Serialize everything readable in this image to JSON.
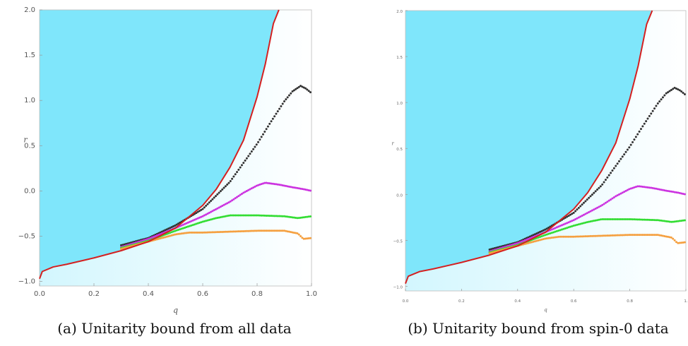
{
  "panels": [
    {
      "caption": "(a) Unitarity bound from all data",
      "chart_data": {
        "type": "scatter",
        "xlabel": "q",
        "ylabel": "r",
        "xlim": [
          0,
          1
        ],
        "ylim": [
          -1.05,
          2.0
        ],
        "xticks": [
          "0.0",
          "0.2",
          "0.4",
          "0.6",
          "0.8",
          "1.0"
        ],
        "yticks": [
          "−1.0",
          "−0.5",
          "0.0",
          "0.5",
          "1.0",
          "1.5",
          "2.0"
        ],
        "region_color": "#7fe6fb",
        "boundary_curve": {
          "color": "#d42020",
          "x": [
            0.0,
            0.01,
            0.05,
            0.1,
            0.2,
            0.3,
            0.4,
            0.5,
            0.6,
            0.65,
            0.7,
            0.75,
            0.8,
            0.83,
            0.86,
            0.88
          ],
          "y": [
            -0.97,
            -0.89,
            -0.84,
            -0.81,
            -0.74,
            -0.66,
            -0.56,
            -0.41,
            -0.16,
            0.02,
            0.26,
            0.56,
            1.04,
            1.4,
            1.85,
            2.0
          ]
        },
        "series": [
          {
            "color": "#333333",
            "x": [
              0.3,
              0.4,
              0.5,
              0.6,
              0.7,
              0.8,
              0.85,
              0.9,
              0.93,
              0.96,
              0.98,
              1.0
            ],
            "y": [
              -0.6,
              -0.52,
              -0.38,
              -0.2,
              0.1,
              0.52,
              0.76,
              0.99,
              1.1,
              1.16,
              1.13,
              1.08
            ]
          },
          {
            "color": "#cc33e0",
            "x": [
              0.3,
              0.4,
              0.5,
              0.6,
              0.7,
              0.75,
              0.8,
              0.83,
              0.88,
              0.93,
              0.97,
              1.0
            ],
            "y": [
              -0.62,
              -0.53,
              -0.41,
              -0.28,
              -0.12,
              -0.02,
              0.06,
              0.09,
              0.07,
              0.04,
              0.02,
              0.0
            ]
          },
          {
            "color": "#33dd33",
            "x": [
              0.3,
              0.4,
              0.5,
              0.6,
              0.65,
              0.7,
              0.8,
              0.9,
              0.95,
              1.0
            ],
            "y": [
              -0.63,
              -0.55,
              -0.44,
              -0.34,
              -0.3,
              -0.27,
              -0.27,
              -0.28,
              -0.3,
              -0.28
            ]
          },
          {
            "color": "#f5a040",
            "x": [
              0.3,
              0.4,
              0.5,
              0.55,
              0.6,
              0.7,
              0.8,
              0.9,
              0.95,
              0.97,
              1.0
            ],
            "y": [
              -0.64,
              -0.56,
              -0.48,
              -0.46,
              -0.46,
              -0.45,
              -0.44,
              -0.44,
              -0.47,
              -0.53,
              -0.52
            ]
          }
        ]
      }
    },
    {
      "caption": "(b) Unitarity bound from spin-0 data",
      "chart_data": {
        "type": "scatter",
        "xlabel": "q",
        "ylabel": "r",
        "xlim": [
          0,
          1
        ],
        "ylim": [
          -1.05,
          2.0
        ],
        "xticks": [
          "0.0",
          "0.2",
          "0.4",
          "0.6",
          "0.8",
          "1."
        ],
        "yticks": [
          "−1.0",
          "−0.5",
          "0.0",
          "0.5",
          "1.0",
          "1.5",
          "2.0"
        ],
        "region_color": "#7fe6fb",
        "boundary_curve": {
          "color": "#d42020",
          "x": [
            0.0,
            0.01,
            0.05,
            0.1,
            0.2,
            0.3,
            0.4,
            0.5,
            0.6,
            0.65,
            0.7,
            0.75,
            0.8,
            0.83,
            0.86,
            0.88
          ],
          "y": [
            -0.97,
            -0.89,
            -0.84,
            -0.81,
            -0.74,
            -0.66,
            -0.56,
            -0.41,
            -0.16,
            0.02,
            0.26,
            0.56,
            1.04,
            1.4,
            1.85,
            2.0
          ]
        },
        "series": [
          {
            "color": "#333333",
            "x": [
              0.3,
              0.4,
              0.5,
              0.6,
              0.7,
              0.8,
              0.85,
              0.9,
              0.93,
              0.96,
              0.98,
              1.0
            ],
            "y": [
              -0.6,
              -0.52,
              -0.38,
              -0.2,
              0.1,
              0.52,
              0.76,
              0.99,
              1.1,
              1.16,
              1.13,
              1.08
            ]
          },
          {
            "color": "#cc33e0",
            "x": [
              0.3,
              0.4,
              0.5,
              0.6,
              0.7,
              0.75,
              0.8,
              0.83,
              0.88,
              0.93,
              0.97,
              1.0
            ],
            "y": [
              -0.62,
              -0.53,
              -0.41,
              -0.28,
              -0.12,
              -0.02,
              0.06,
              0.09,
              0.07,
              0.04,
              0.02,
              0.0
            ]
          },
          {
            "color": "#33dd33",
            "x": [
              0.3,
              0.4,
              0.5,
              0.6,
              0.65,
              0.7,
              0.8,
              0.9,
              0.95,
              1.0
            ],
            "y": [
              -0.63,
              -0.55,
              -0.44,
              -0.34,
              -0.3,
              -0.27,
              -0.27,
              -0.28,
              -0.3,
              -0.28
            ]
          },
          {
            "color": "#f5a040",
            "x": [
              0.3,
              0.4,
              0.5,
              0.55,
              0.6,
              0.7,
              0.8,
              0.9,
              0.95,
              0.97,
              1.0
            ],
            "y": [
              -0.64,
              -0.56,
              -0.48,
              -0.46,
              -0.46,
              -0.45,
              -0.44,
              -0.44,
              -0.47,
              -0.53,
              -0.52
            ]
          }
        ]
      }
    }
  ]
}
